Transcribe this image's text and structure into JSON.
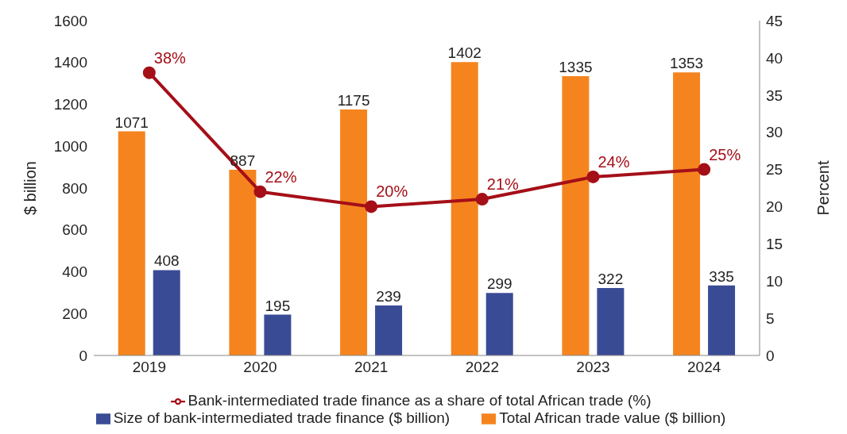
{
  "chart_data": {
    "type": "bar",
    "categories": [
      "2019",
      "2020",
      "2021",
      "2022",
      "2023",
      "2024"
    ],
    "series": [
      {
        "name": "Total African trade value ($ billion)",
        "color": "#f5841f",
        "values": [
          1071,
          887,
          1175,
          1402,
          1335,
          1353
        ]
      },
      {
        "name": "Size of bank-intermediated trade finance ($ billion)",
        "color": "#3a4b96",
        "values": [
          408,
          195,
          239,
          299,
          322,
          335
        ]
      },
      {
        "name": "Bank-intermediated trade finance as a share of total African trade (%)",
        "type": "line",
        "axis": "y2",
        "color": "#a50f18",
        "marker": "circle",
        "values": [
          38,
          22,
          20,
          21,
          24,
          25
        ],
        "value_labels": [
          "38%",
          "22%",
          "20%",
          "21%",
          "24%",
          "25%"
        ]
      }
    ],
    "ylabel": "$ billion",
    "y2label": "Percent",
    "ylim": [
      0,
      1600
    ],
    "yticks": [
      0,
      200,
      400,
      600,
      800,
      1000,
      1200,
      1400,
      1600
    ],
    "y2lim": [
      0,
      45
    ],
    "y2ticks": [
      0,
      5,
      10,
      15,
      20,
      25,
      30,
      35,
      40,
      45
    ],
    "data_labels": true,
    "grid": false,
    "legend": "bottom"
  }
}
